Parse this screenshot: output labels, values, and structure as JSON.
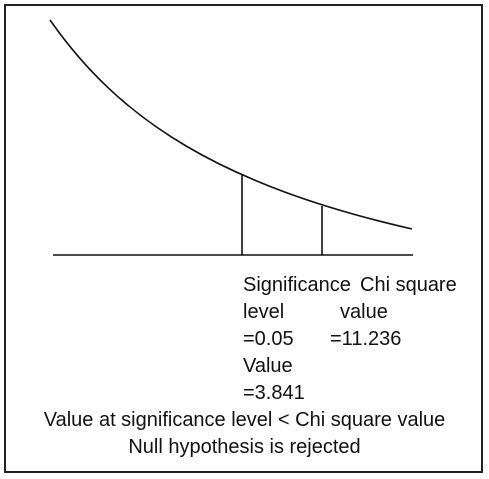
{
  "diagram": {
    "significance_label_line1": "Significance",
    "significance_label_line2": "level",
    "significance_value": "=0.05",
    "critical_value_label": "Value",
    "critical_value": "=3.841",
    "chi_label_line1": "Chi square",
    "chi_label_line2": "value",
    "chi_value": "=11.236",
    "comparison_text": "Value at significance level < Chi square value",
    "conclusion_text": "Null hypothesis is rejected"
  },
  "style": {
    "line_color": "#111111",
    "background": "#ffffff"
  }
}
